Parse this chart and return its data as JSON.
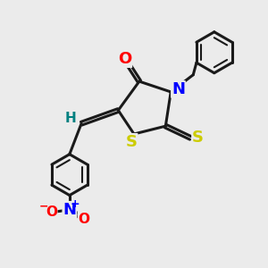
{
  "bg_color": "#ebebeb",
  "bond_color": "#1a1a1a",
  "bond_width": 2.2,
  "atom_colors": {
    "O": "#ff0000",
    "N": "#0000ff",
    "S": "#cccc00",
    "H": "#008080",
    "O_nitro": "#ff0000",
    "N_nitro": "#0000ff"
  },
  "font_size": 13
}
